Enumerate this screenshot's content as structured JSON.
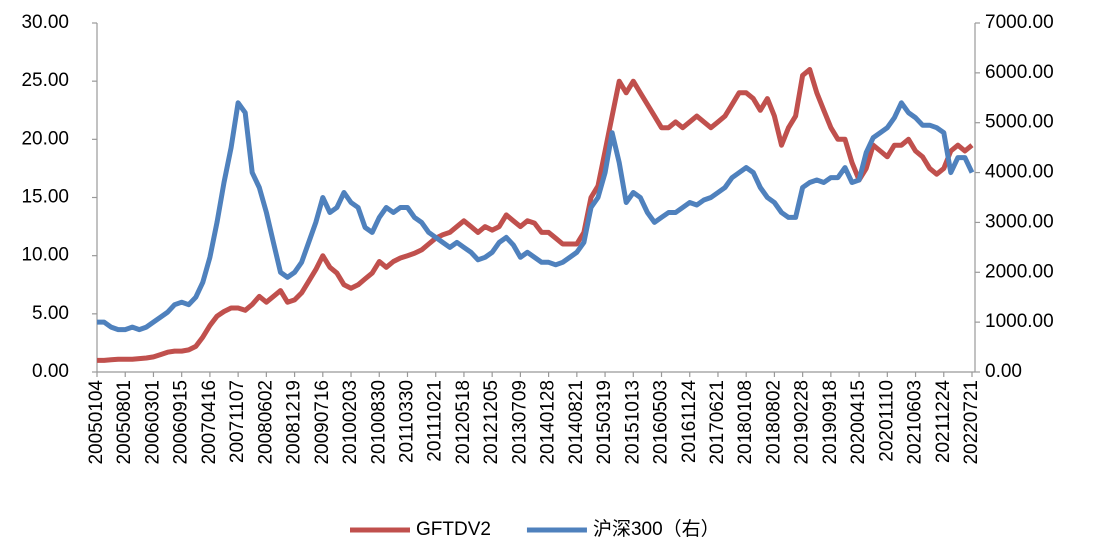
{
  "chart_data": {
    "type": "line",
    "categories": [
      "20050104",
      null,
      null,
      null,
      "20050801",
      null,
      null,
      null,
      "20060301",
      null,
      null,
      null,
      "20060915",
      null,
      null,
      null,
      "20070416",
      null,
      null,
      null,
      "20071107",
      null,
      null,
      null,
      "20080602",
      null,
      null,
      null,
      "20081219",
      null,
      null,
      null,
      "20090716",
      null,
      null,
      null,
      "20100203",
      null,
      null,
      null,
      "20100830",
      null,
      null,
      null,
      "20110330",
      null,
      null,
      null,
      "20111021",
      null,
      null,
      null,
      "20120518",
      null,
      null,
      null,
      "20121205",
      null,
      null,
      null,
      "20130709",
      null,
      null,
      null,
      "20140128",
      null,
      null,
      null,
      "20140821",
      null,
      null,
      null,
      "20150319",
      null,
      null,
      null,
      "20151013",
      null,
      null,
      null,
      "20160503",
      null,
      null,
      null,
      "20161124",
      null,
      null,
      null,
      "20170621",
      null,
      null,
      null,
      "20180108",
      null,
      null,
      null,
      "20180802",
      null,
      null,
      null,
      "20190228",
      null,
      null,
      null,
      "20190918",
      null,
      null,
      null,
      "20200415",
      null,
      null,
      null,
      "20201110",
      null,
      null,
      null,
      "20210603",
      null,
      null,
      null,
      "20211224",
      null,
      null,
      null,
      "20220721"
    ],
    "series": [
      {
        "name": "GFTDV2",
        "color": "#c0504d",
        "values": [
          1.0,
          1.0,
          1.05,
          1.1,
          1.1,
          1.1,
          1.15,
          1.2,
          1.3,
          1.5,
          1.7,
          1.8,
          1.8,
          1.9,
          2.2,
          3.0,
          4.0,
          4.8,
          5.2,
          5.5,
          5.5,
          5.3,
          5.8,
          6.5,
          6.0,
          6.5,
          7.0,
          6.0,
          6.2,
          6.8,
          7.8,
          8.8,
          10.0,
          9.0,
          8.5,
          7.5,
          7.2,
          7.5,
          8.0,
          8.5,
          9.5,
          9.0,
          9.5,
          9.8,
          10.0,
          10.2,
          10.5,
          11.0,
          11.5,
          11.8,
          12.0,
          12.5,
          13.0,
          12.5,
          12.0,
          12.5,
          12.2,
          12.5,
          13.5,
          13.0,
          12.5,
          13.0,
          12.8,
          12.0,
          12.0,
          11.5,
          11.0,
          11.0,
          11.0,
          12.0,
          15.0,
          16.0,
          19.0,
          22.0,
          25.0,
          24.0,
          25.0,
          24.0,
          23.0,
          22.0,
          21.0,
          21.0,
          21.5,
          21.0,
          21.5,
          22.0,
          21.5,
          21.0,
          21.5,
          22.0,
          23.0,
          24.0,
          24.0,
          23.5,
          22.5,
          23.5,
          22.0,
          19.5,
          21.0,
          22.0,
          25.5,
          26.0,
          24.0,
          22.5,
          21.0,
          20.0,
          20.0,
          18.0,
          16.5,
          17.5,
          19.5,
          19.0,
          18.5,
          19.5,
          19.5,
          20.0,
          19.0,
          18.5,
          17.5,
          17.0,
          17.5,
          19.0,
          19.5,
          19.0,
          19.5
        ]
      },
      {
        "name": "沪深300（右）",
        "color": "#4f81bd",
        "axis": "y2",
        "values": [
          1000,
          1000,
          900,
          850,
          850,
          900,
          850,
          900,
          1000,
          1100,
          1200,
          1350,
          1400,
          1350,
          1500,
          1800,
          2300,
          3000,
          3800,
          4500,
          5400,
          5200,
          4000,
          3700,
          3200,
          2600,
          2000,
          1900,
          2000,
          2200,
          2600,
          3000,
          3500,
          3200,
          3300,
          3600,
          3400,
          3300,
          2900,
          2800,
          3100,
          3300,
          3200,
          3300,
          3300,
          3100,
          3000,
          2800,
          2700,
          2600,
          2500,
          2600,
          2500,
          2400,
          2250,
          2300,
          2400,
          2600,
          2700,
          2550,
          2300,
          2400,
          2300,
          2200,
          2200,
          2150,
          2200,
          2300,
          2400,
          2600,
          3300,
          3500,
          4000,
          4800,
          4200,
          3400,
          3600,
          3500,
          3200,
          3000,
          3100,
          3200,
          3200,
          3300,
          3400,
          3350,
          3450,
          3500,
          3600,
          3700,
          3900,
          4000,
          4100,
          4000,
          3700,
          3500,
          3400,
          3200,
          3100,
          3100,
          3700,
          3800,
          3850,
          3800,
          3900,
          3900,
          4100,
          3800,
          3850,
          4400,
          4700,
          4800,
          4900,
          5100,
          5400,
          5200,
          5100,
          4950,
          4950,
          4900,
          4800,
          4000,
          4300,
          4300,
          4000
        ]
      }
    ],
    "ylim": [
      0,
      30
    ],
    "yticks": [
      {
        "value": 0,
        "label": "0.00"
      },
      {
        "value": 5,
        "label": "5.00"
      },
      {
        "value": 10,
        "label": "10.00"
      },
      {
        "value": 15,
        "label": "15.00"
      },
      {
        "value": 20,
        "label": "20.00"
      },
      {
        "value": 25,
        "label": "25.00"
      },
      {
        "value": 30,
        "label": "30.00"
      }
    ],
    "y2lim": [
      0,
      7000
    ],
    "y2ticks": [
      {
        "value": 0,
        "label": "0.00"
      },
      {
        "value": 1000,
        "label": "1000.00"
      },
      {
        "value": 2000,
        "label": "2000.00"
      },
      {
        "value": 3000,
        "label": "3000.00"
      },
      {
        "value": 4000,
        "label": "4000.00"
      },
      {
        "value": 5000,
        "label": "5000.00"
      },
      {
        "value": 6000,
        "label": "6000.00"
      },
      {
        "value": 7000,
        "label": "7000.00"
      }
    ],
    "legend": "bottom"
  }
}
